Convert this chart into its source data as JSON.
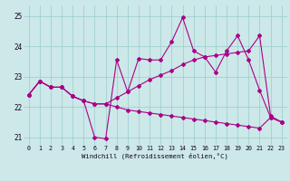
{
  "xlabel": "Windchill (Refroidissement éolien,°C)",
  "background_color": "#cce8e8",
  "line_color": "#aa0088",
  "grid_color": "#99cccc",
  "ylim": [
    20.75,
    25.35
  ],
  "xlim": [
    -0.5,
    23.5
  ],
  "yticks": [
    21,
    22,
    23,
    24,
    25
  ],
  "xticks": [
    0,
    1,
    2,
    3,
    4,
    5,
    6,
    7,
    8,
    9,
    10,
    11,
    12,
    13,
    14,
    15,
    16,
    17,
    18,
    19,
    20,
    21,
    22,
    23
  ],
  "series_A_x": [
    0,
    1,
    2,
    3,
    4,
    5,
    6,
    7,
    8,
    9,
    10,
    11,
    12,
    13,
    14,
    15,
    16,
    17,
    18,
    19,
    20,
    21,
    22,
    23
  ],
  "series_A_y": [
    22.4,
    22.85,
    22.65,
    22.65,
    22.35,
    22.2,
    22.1,
    22.1,
    22.3,
    22.5,
    22.7,
    22.9,
    23.05,
    23.2,
    23.4,
    23.55,
    23.65,
    23.7,
    23.75,
    23.8,
    23.85,
    24.35,
    21.7,
    21.5
  ],
  "series_B_x": [
    0,
    1,
    2,
    3,
    4,
    5,
    6,
    7,
    8,
    9,
    10,
    11,
    12,
    13,
    14,
    15,
    16,
    17,
    18,
    19,
    20,
    21,
    22,
    23
  ],
  "series_B_y": [
    22.4,
    22.85,
    22.65,
    22.65,
    22.35,
    22.2,
    21.0,
    20.95,
    23.55,
    22.5,
    23.6,
    23.55,
    23.55,
    24.15,
    24.95,
    23.85,
    23.65,
    23.15,
    23.85,
    24.35,
    23.55,
    22.55,
    21.65,
    21.5
  ],
  "series_C_x": [
    0,
    1,
    2,
    3,
    4,
    5,
    6,
    7,
    8,
    9,
    10,
    11,
    12,
    13,
    14,
    15,
    16,
    17,
    18,
    19,
    20,
    21,
    22,
    23
  ],
  "series_C_y": [
    22.4,
    22.85,
    22.65,
    22.65,
    22.35,
    22.2,
    22.1,
    22.1,
    22.0,
    21.9,
    21.85,
    21.8,
    21.75,
    21.7,
    21.65,
    21.6,
    21.55,
    21.5,
    21.45,
    21.4,
    21.35,
    21.3,
    21.65,
    21.5
  ]
}
